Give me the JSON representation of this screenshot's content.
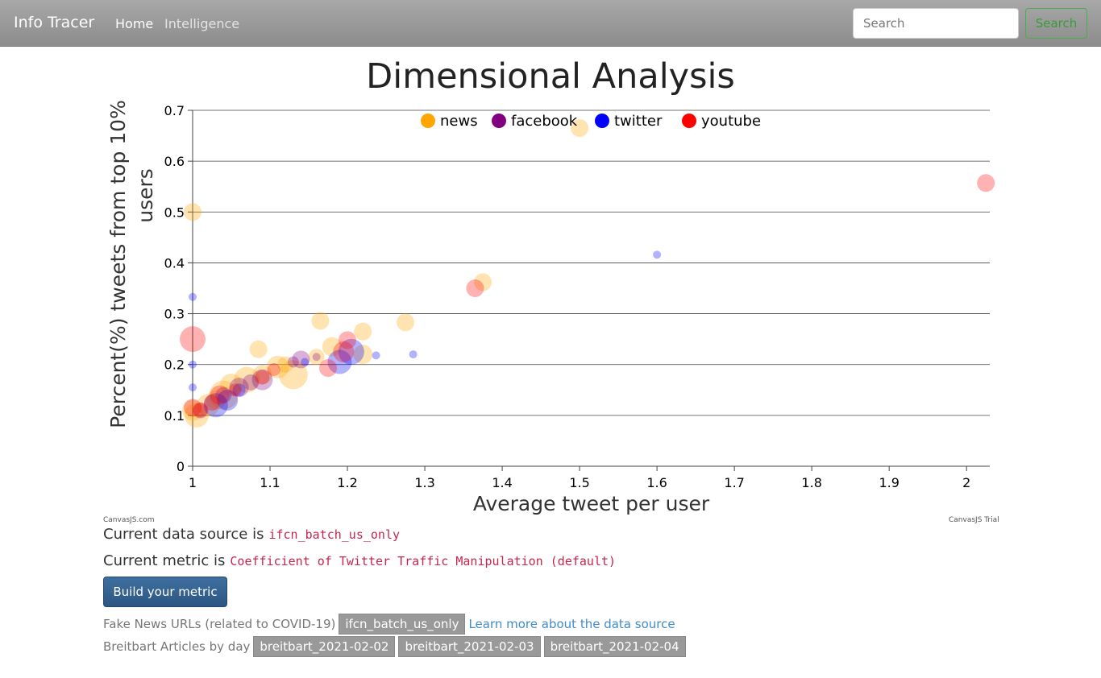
{
  "navbar": {
    "brand": "Info Tracer",
    "links": [
      "Home",
      "Intelligence"
    ],
    "search_placeholder": "Search",
    "search_button": "Search"
  },
  "page": {
    "title": "Dimensional Analysis"
  },
  "colors": {
    "news": "#ffa500",
    "facebook": "#800080",
    "twitter": "#0000ff",
    "youtube": "#ff0000"
  },
  "chart_data": {
    "type": "scatter",
    "subtype": "bubble",
    "title": "",
    "xlabel": "Average tweet per user",
    "ylabel": "Percent(%) tweets from top 10% users",
    "xlim": [
      1,
      2.03
    ],
    "ylim": [
      0,
      0.7
    ],
    "xticks": [
      "1",
      "1.1",
      "1.2",
      "1.3",
      "1.4",
      "1.5",
      "1.6",
      "1.7",
      "1.8",
      "1.9",
      "2"
    ],
    "yticks": [
      "0",
      "0.1",
      "0.2",
      "0.3",
      "0.4",
      "0.5",
      "0.6",
      "0.7"
    ],
    "grid": true,
    "legend": "top-center",
    "series": [
      {
        "name": "news",
        "color": "#ffa500",
        "points": [
          {
            "x": 1.0,
            "y": 0.5,
            "r": 11
          },
          {
            "x": 1.5,
            "y": 0.665,
            "r": 11
          },
          {
            "x": 1.375,
            "y": 0.362,
            "r": 11
          },
          {
            "x": 1.275,
            "y": 0.283,
            "r": 11
          },
          {
            "x": 1.22,
            "y": 0.265,
            "r": 11
          },
          {
            "x": 1.165,
            "y": 0.286,
            "r": 11
          },
          {
            "x": 1.085,
            "y": 0.23,
            "r": 11
          },
          {
            "x": 1.13,
            "y": 0.18,
            "r": 18
          },
          {
            "x": 1.11,
            "y": 0.195,
            "r": 14
          },
          {
            "x": 1.18,
            "y": 0.235,
            "r": 12
          },
          {
            "x": 1.16,
            "y": 0.215,
            "r": 10
          },
          {
            "x": 1.22,
            "y": 0.22,
            "r": 12
          },
          {
            "x": 1.07,
            "y": 0.17,
            "r": 16
          },
          {
            "x": 1.05,
            "y": 0.16,
            "r": 14
          },
          {
            "x": 1.04,
            "y": 0.14,
            "r": 18
          },
          {
            "x": 1.02,
            "y": 0.12,
            "r": 14
          },
          {
            "x": 1.005,
            "y": 0.1,
            "r": 15
          },
          {
            "x": 1.03,
            "y": 0.13,
            "r": 12
          },
          {
            "x": 1.09,
            "y": 0.18,
            "r": 12
          },
          {
            "x": 1.12,
            "y": 0.2,
            "r": 10
          },
          {
            "x": 1.0,
            "y": 0.11,
            "r": 13
          }
        ]
      },
      {
        "name": "facebook",
        "color": "#800080",
        "points": [
          {
            "x": 1.14,
            "y": 0.21,
            "r": 11
          },
          {
            "x": 1.09,
            "y": 0.17,
            "r": 13
          },
          {
            "x": 1.06,
            "y": 0.155,
            "r": 12
          },
          {
            "x": 1.04,
            "y": 0.14,
            "r": 10
          },
          {
            "x": 1.13,
            "y": 0.205,
            "r": 7
          },
          {
            "x": 1.16,
            "y": 0.215,
            "r": 5
          },
          {
            "x": 1.01,
            "y": 0.11,
            "r": 9
          },
          {
            "x": 1.075,
            "y": 0.165,
            "r": 10
          }
        ]
      },
      {
        "name": "twitter",
        "color": "#0000ff",
        "points": [
          {
            "x": 1.6,
            "y": 0.416,
            "r": 5
          },
          {
            "x": 1.0,
            "y": 0.333,
            "r": 5
          },
          {
            "x": 1.0,
            "y": 0.2,
            "r": 5
          },
          {
            "x": 1.285,
            "y": 0.22,
            "r": 5
          },
          {
            "x": 1.237,
            "y": 0.218,
            "r": 5
          },
          {
            "x": 1.205,
            "y": 0.225,
            "r": 16
          },
          {
            "x": 1.19,
            "y": 0.205,
            "r": 15
          },
          {
            "x": 1.03,
            "y": 0.12,
            "r": 15
          },
          {
            "x": 1.045,
            "y": 0.13,
            "r": 13
          },
          {
            "x": 1.0,
            "y": 0.155,
            "r": 5
          },
          {
            "x": 1.06,
            "y": 0.15,
            "r": 8
          },
          {
            "x": 1.145,
            "y": 0.205,
            "r": 5
          }
        ]
      },
      {
        "name": "youtube",
        "color": "#ff0000",
        "points": [
          {
            "x": 2.025,
            "y": 0.557,
            "r": 11
          },
          {
            "x": 1.365,
            "y": 0.35,
            "r": 11
          },
          {
            "x": 1.0,
            "y": 0.25,
            "r": 16
          },
          {
            "x": 1.2,
            "y": 0.248,
            "r": 11
          },
          {
            "x": 1.175,
            "y": 0.193,
            "r": 11
          },
          {
            "x": 1.195,
            "y": 0.225,
            "r": 13
          },
          {
            "x": 1.09,
            "y": 0.175,
            "r": 9
          },
          {
            "x": 1.105,
            "y": 0.19,
            "r": 8
          },
          {
            "x": 1.035,
            "y": 0.14,
            "r": 12
          },
          {
            "x": 1.0,
            "y": 0.115,
            "r": 11
          },
          {
            "x": 1.01,
            "y": 0.11,
            "r": 10
          },
          {
            "x": 1.055,
            "y": 0.15,
            "r": 8
          },
          {
            "x": 1.025,
            "y": 0.125,
            "r": 10
          }
        ]
      }
    ]
  },
  "credits": {
    "left": "CanvasJS.com",
    "right": "CanvasJS Trial"
  },
  "info": {
    "source_label": "Current data source is",
    "source_value": "ifcn_batch_us_only",
    "metric_label": "Current metric is",
    "metric_value": "Coefficient of Twitter Traffic Manipulation (default)",
    "build_button": "Build your metric"
  },
  "sources": {
    "fake_news_label": "Fake News URLs (related to COVID-19)",
    "fake_news_tags": [
      "ifcn_batch_us_only"
    ],
    "learn_more": "Learn more about the data source",
    "breitbart_label": "Breitbart Articles by day",
    "breitbart_tags": [
      "breitbart_2021-02-02",
      "breitbart_2021-02-03",
      "breitbart_2021-02-04"
    ]
  }
}
